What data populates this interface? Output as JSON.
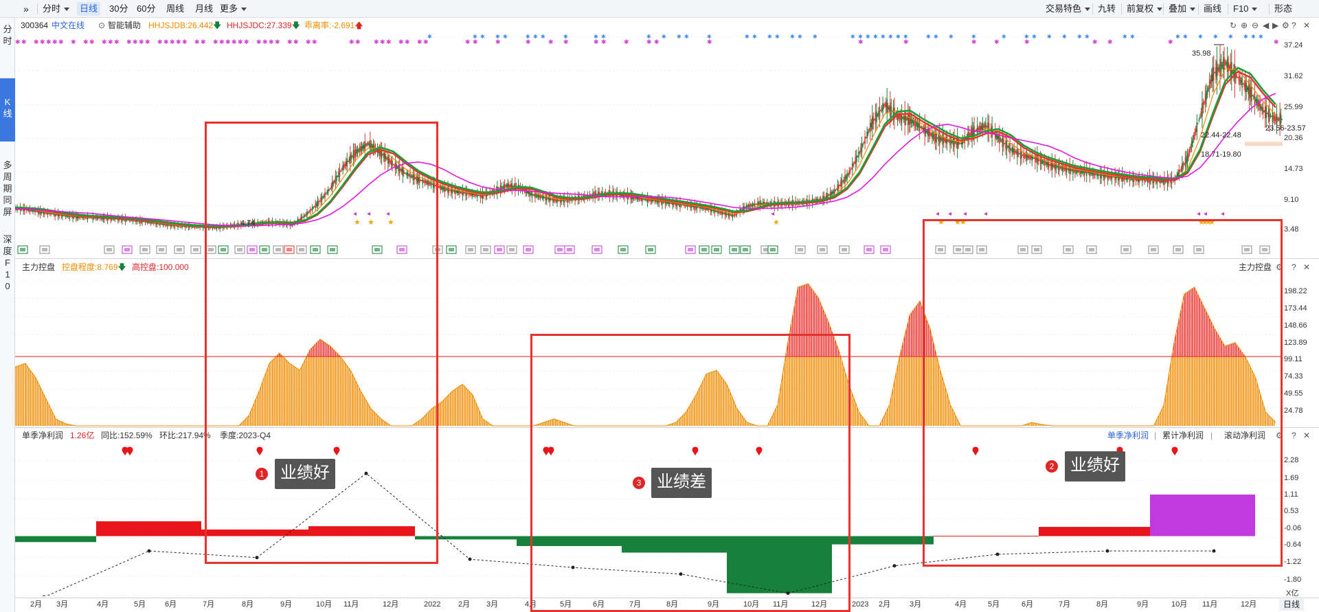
{
  "toolbar": {
    "expand_icon": "double-chevron-right-icon",
    "items": [
      {
        "label": "分时",
        "has_caret": true
      },
      {
        "label": "日线",
        "active": true
      },
      {
        "label": "30分"
      },
      {
        "label": "60分"
      },
      {
        "label": "周线"
      },
      {
        "label": "月线"
      },
      {
        "label": "更多",
        "has_caret": true
      }
    ],
    "right_items": [
      {
        "label": "交易特色",
        "has_caret": true
      },
      {
        "label": "九转"
      },
      {
        "label": "前复权",
        "has_caret": true
      },
      {
        "label": "叠加",
        "has_caret": true
      },
      {
        "label": "画线"
      },
      {
        "label": "F10",
        "has_caret": true
      },
      {
        "label": "形态"
      }
    ]
  },
  "left_nav": [
    {
      "label": "分\n时"
    },
    {
      "label": "K\n线",
      "active": true
    },
    {
      "label": "多\n周\n期\n同\n屏"
    },
    {
      "label": "深\n度\nF\n1\n0"
    }
  ],
  "kline_header": {
    "code": "300364",
    "name": "中文在线",
    "assist": "智能辅助",
    "ind1": "HHJSJDB:26.442",
    "ind2": "HHJSJDC:27.339",
    "ind3": "乖离率:-2.691",
    "colors": {
      "ind1": "#f08c00",
      "ind2": "#e02525",
      "ind3": "#f08c00"
    }
  },
  "kline_axis": [
    "37.24",
    "31.62",
    "25.99",
    "20.36",
    "14.73",
    "9.10",
    "3.48"
  ],
  "kline_labels": {
    "high": "35.98",
    "low": "4.74",
    "last": "23.56-23.57",
    "zone1": "22.44-22.48",
    "zone2": "18.71-19.80"
  },
  "control_header": {
    "title": "主力控盘",
    "degree": "控盘程度:8.769",
    "high": "高控盘:100.000",
    "right_title": "主力控盘"
  },
  "control_axis": [
    "198.22",
    "173.44",
    "148.66",
    "123.89",
    "99.11",
    "74.33",
    "49.55",
    "24.78"
  ],
  "profit_header": {
    "title": "单季净利润",
    "value": "1.26亿",
    "yoy": "同比:152.59%",
    "qoq": "环比:217.94%",
    "period": "季度:2023-Q4",
    "tabs": [
      "单季净利润",
      "累计净利润",
      "滚动净利润"
    ]
  },
  "profit_axis": [
    "2.28",
    "1.69",
    "1.11",
    "0.53",
    "-0.06",
    "-0.64",
    "-1.22",
    "-1.80"
  ],
  "unit_label": "X亿",
  "x_axis": [
    {
      "label": "2月",
      "x": 44
    },
    {
      "label": "3月",
      "x": 82
    },
    {
      "label": "4月",
      "x": 141
    },
    {
      "label": "5月",
      "x": 195
    },
    {
      "label": "6月",
      "x": 240
    },
    {
      "label": "7月",
      "x": 295
    },
    {
      "label": "8月",
      "x": 352
    },
    {
      "label": "9月",
      "x": 408
    },
    {
      "label": "10月",
      "x": 460
    },
    {
      "label": "11月",
      "x": 500
    },
    {
      "label": "12月",
      "x": 557
    },
    {
      "label": "2022",
      "x": 617
    },
    {
      "label": "2月",
      "x": 667
    },
    {
      "label": "3月",
      "x": 708
    },
    {
      "label": "4月",
      "x": 764
    },
    {
      "label": "5月",
      "x": 815
    },
    {
      "label": "6月",
      "x": 863
    },
    {
      "label": "7月",
      "x": 916
    },
    {
      "label": "8月",
      "x": 970
    },
    {
      "label": "9月",
      "x": 1030
    },
    {
      "label": "10月",
      "x": 1082
    },
    {
      "label": "11月",
      "x": 1125
    },
    {
      "label": "12月",
      "x": 1181
    },
    {
      "label": "2023",
      "x": 1240
    },
    {
      "label": "2月",
      "x": 1279
    },
    {
      "label": "3月",
      "x": 1324
    },
    {
      "label": "4月",
      "x": 1390
    },
    {
      "label": "5月",
      "x": 1438
    },
    {
      "label": "6月",
      "x": 1487
    },
    {
      "label": "7月",
      "x": 1541
    },
    {
      "label": "8月",
      "x": 1596
    },
    {
      "label": "9月",
      "x": 1655
    },
    {
      "label": "10月",
      "x": 1705
    },
    {
      "label": "11月",
      "x": 1750
    },
    {
      "label": "12月",
      "x": 1806
    }
  ],
  "period_label": "日线",
  "annotations": [
    {
      "num": "1",
      "text": "业绩好"
    },
    {
      "num": "3",
      "text": "业绩差"
    },
    {
      "num": "2",
      "text": "业绩好"
    }
  ],
  "chart_data": {
    "type": "line",
    "price_close": [
      8.7,
      8.5,
      8.1,
      7.8,
      7.5,
      7.3,
      7.2,
      7.1,
      7.0,
      6.8,
      6.6,
      6.3,
      6.0,
      5.8,
      5.7,
      5.6,
      5.5,
      5.8,
      6.0,
      6.2,
      6.4,
      6.3,
      6.0,
      7.5,
      9.5,
      12.0,
      15.5,
      18.0,
      19.5,
      18.0,
      16.0,
      14.5,
      13.5,
      12.8,
      12.0,
      11.5,
      11.2,
      10.8,
      11.5,
      12.5,
      12.2,
      11.0,
      10.5,
      10.0,
      10.2,
      10.5,
      11.0,
      11.2,
      11.0,
      10.6,
      10.2,
      10.0,
      9.6,
      9.3,
      9.0,
      8.6,
      8.0,
      7.5,
      9.0,
      9.5,
      9.4,
      9.5,
      9.6,
      9.8,
      10.2,
      11.5,
      14.0,
      18.0,
      23.0,
      26.0,
      24.0,
      23.5,
      22.0,
      20.5,
      20.0,
      19.5,
      21.5,
      22.5,
      20.5,
      18.5,
      17.5,
      17.0,
      16.0,
      15.5,
      15.0,
      14.8,
      14.3,
      14.0,
      13.8,
      13.5,
      13.5,
      13.2,
      13.5,
      17.0,
      24.0,
      31.0,
      33.0,
      30.5,
      28.0,
      25.0,
      23.56
    ],
    "kline_yrange": [
      3.48,
      37.24
    ],
    "control_values": [
      85,
      90,
      70,
      40,
      10,
      3,
      0,
      0,
      0,
      0,
      0,
      0,
      0,
      0,
      0,
      0,
      0,
      0,
      0,
      0,
      0,
      0,
      0,
      15,
      50,
      90,
      105,
      90,
      80,
      110,
      125,
      115,
      100,
      80,
      50,
      25,
      10,
      0,
      0,
      0,
      10,
      25,
      35,
      50,
      60,
      45,
      10,
      0,
      0,
      0,
      0,
      0,
      5,
      10,
      5,
      0,
      0,
      0,
      0,
      0,
      0,
      0,
      0,
      0,
      0,
      5,
      20,
      45,
      75,
      80,
      60,
      25,
      5,
      0,
      0,
      30,
      120,
      200,
      205,
      185,
      150,
      110,
      60,
      20,
      0,
      0,
      30,
      100,
      160,
      180,
      140,
      80,
      30,
      0,
      0,
      0,
      0,
      0,
      0,
      0,
      5,
      2,
      0,
      0,
      0,
      0,
      0,
      0,
      0,
      0,
      0,
      0,
      0,
      30,
      120,
      190,
      200,
      170,
      140,
      115,
      120,
      100,
      70,
      20,
      5
    ],
    "control_yrange": [
      0,
      210
    ],
    "control_threshold": 100,
    "profit_quarters": [
      {
        "q": "2021-Q1",
        "value": -0.18
      },
      {
        "q": "2021-Q2",
        "value": 0.45
      },
      {
        "q": "2021-Q3",
        "value": 0.2
      },
      {
        "q": "2021-Q4",
        "value": 0.3
      },
      {
        "q": "2022-Q1",
        "value": -0.1
      },
      {
        "q": "2022-Q2",
        "value": -0.3
      },
      {
        "q": "2022-Q3",
        "value": -0.5
      },
      {
        "q": "2022-Q4",
        "value": -1.73
      },
      {
        "q": "2023-Q1",
        "value": -0.25
      },
      {
        "q": "2023-Q2",
        "value": 0.01
      },
      {
        "q": "2023-Q3",
        "value": 0.28
      },
      {
        "q": "2023-Q4",
        "value": 1.26
      }
    ],
    "profit_yoy_line": [
      -1.85,
      -0.45,
      -0.65,
      1.9,
      -0.7,
      -0.95,
      -1.15,
      -1.73,
      -0.9,
      -0.55,
      -0.45,
      -0.45
    ],
    "profit_yrange": [
      -1.8,
      2.28
    ]
  }
}
